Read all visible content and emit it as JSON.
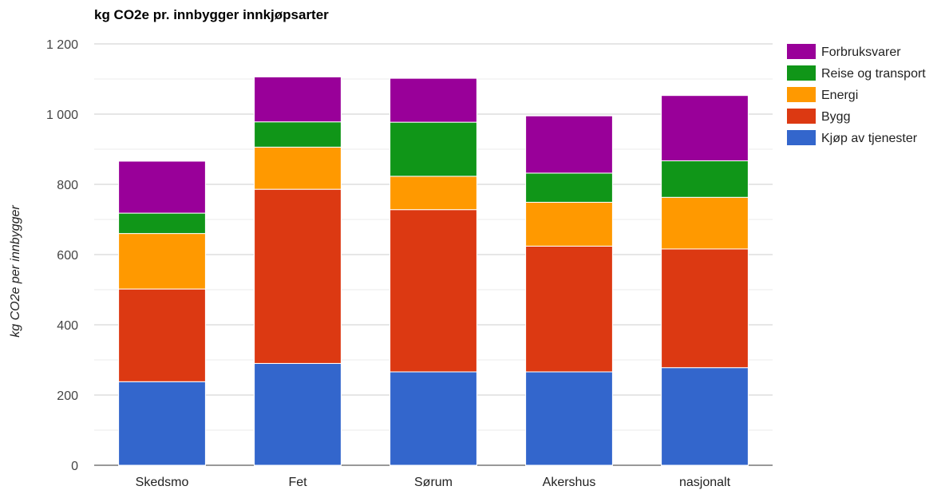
{
  "chart_data": {
    "type": "bar",
    "stacked": true,
    "title": "kg CO2e pr. innbygger innkjøpsarter",
    "xlabel": "",
    "ylabel": "kg CO2e per innbygger",
    "ylim": [
      0,
      1200
    ],
    "yticks": [
      {
        "value": 0,
        "label": "0"
      },
      {
        "value": 200,
        "label": "200"
      },
      {
        "value": 400,
        "label": "400"
      },
      {
        "value": 600,
        "label": "600"
      },
      {
        "value": 800,
        "label": "800"
      },
      {
        "value": 1000,
        "label": "1 000"
      },
      {
        "value": 1200,
        "label": "1 200"
      }
    ],
    "grid": true,
    "legend_position": "right",
    "categories": [
      "Skedsmo",
      "Fet",
      "Sørum",
      "Akershus",
      "nasjonalt"
    ],
    "series": [
      {
        "name": "Kjøp av tjenester",
        "color": "#3366cc",
        "values": [
          238,
          290,
          266,
          266,
          278
        ]
      },
      {
        "name": "Bygg",
        "color": "#dc3912",
        "values": [
          264,
          496,
          462,
          358,
          338
        ]
      },
      {
        "name": "Energi",
        "color": "#ff9900",
        "values": [
          158,
          120,
          95,
          125,
          147
        ]
      },
      {
        "name": "Reise og transport",
        "color": "#109618",
        "values": [
          58,
          72,
          154,
          83,
          104
        ]
      },
      {
        "name": "Forbruksvarer",
        "color": "#990099",
        "values": [
          148,
          128,
          125,
          163,
          186
        ]
      }
    ],
    "legend_order": [
      "Forbruksvarer",
      "Reise og transport",
      "Energi",
      "Bygg",
      "Kjøp av tjenester"
    ]
  }
}
